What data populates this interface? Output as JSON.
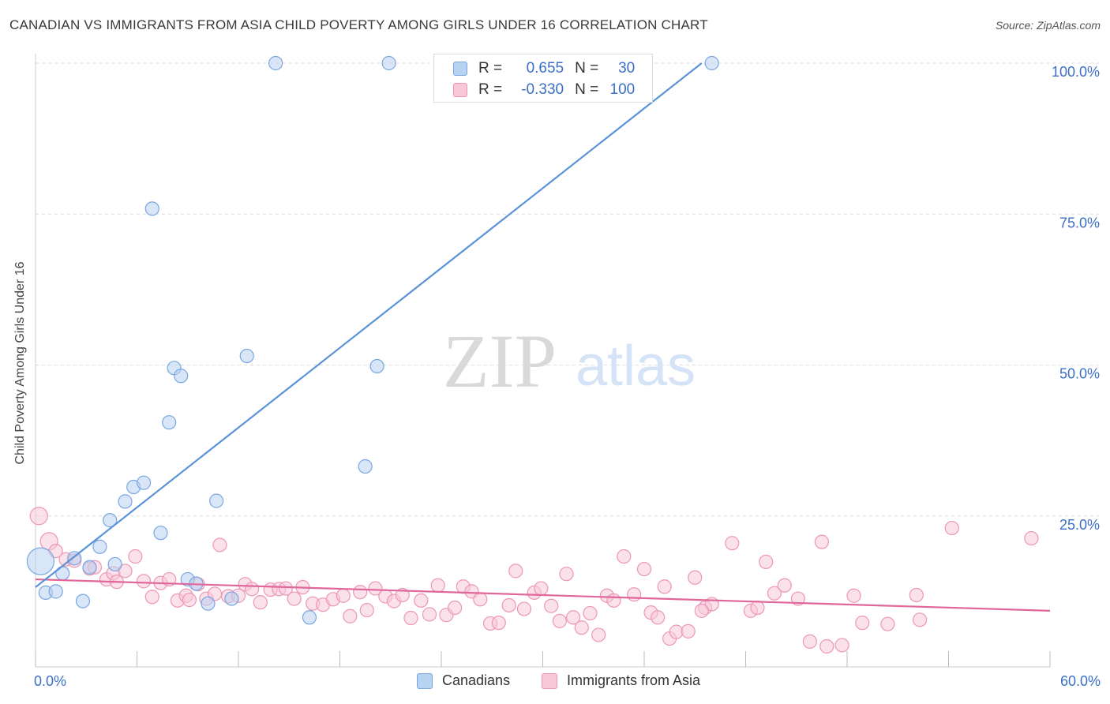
{
  "header": {
    "title": "CANADIAN VS IMMIGRANTS FROM ASIA CHILD POVERTY AMONG GIRLS UNDER 16 CORRELATION CHART",
    "source": "Source: ZipAtlas.com"
  },
  "watermark": {
    "zip": "ZIP",
    "atlas": "atlas"
  },
  "legend": {
    "rows": [
      {
        "r_label": "R =",
        "r_value": "0.655",
        "n_label": "N =",
        "n_value": "30",
        "color": "#b8d2f2",
        "stroke": "#7aa6e0"
      },
      {
        "r_label": "R =",
        "r_value": "-0.330",
        "n_label": "N =",
        "n_value": "100",
        "color": "#f8c8d8",
        "stroke": "#ec97b5"
      }
    ]
  },
  "bottom_legend": {
    "canadians": "Canadians",
    "asia": "Immigrants from Asia"
  },
  "chart_data": {
    "type": "scatter",
    "title": "CANADIAN VS IMMIGRANTS FROM ASIA CHILD POVERTY AMONG GIRLS UNDER 16 CORRELATION CHART",
    "xlabel": "",
    "ylabel": "Child Poverty Among Girls Under 16",
    "xlim": [
      0,
      60
    ],
    "ylim": [
      0,
      100
    ],
    "x_tick_labels": [
      "0.0%",
      "60.0%"
    ],
    "y_tick_values": [
      25,
      50,
      75,
      100
    ],
    "y_tick_labels": [
      "25.0%",
      "50.0%",
      "75.0%",
      "100.0%"
    ],
    "grid": true,
    "legend_position": "top-center",
    "series": [
      {
        "name": "Canadians",
        "color": "#5b93d8",
        "fill": "#b8d2f2",
        "trend": {
          "x": [
            0,
            39.4
          ],
          "y": [
            13.2,
            100
          ]
        },
        "points": [
          [
            0.3,
            17.5
          ],
          [
            0.6,
            12.3
          ],
          [
            1.2,
            12.5
          ],
          [
            1.6,
            15.5
          ],
          [
            2.3,
            18.0
          ],
          [
            2.8,
            10.9
          ],
          [
            3.2,
            16.5
          ],
          [
            3.8,
            19.9
          ],
          [
            4.4,
            24.3
          ],
          [
            4.7,
            17.0
          ],
          [
            5.3,
            27.4
          ],
          [
            5.8,
            29.8
          ],
          [
            6.4,
            30.5
          ],
          [
            6.9,
            75.9
          ],
          [
            7.4,
            22.2
          ],
          [
            7.9,
            40.5
          ],
          [
            8.2,
            49.5
          ],
          [
            8.6,
            48.2
          ],
          [
            9.0,
            14.5
          ],
          [
            9.5,
            13.8
          ],
          [
            10.2,
            10.5
          ],
          [
            10.7,
            27.5
          ],
          [
            11.6,
            11.3
          ],
          [
            12.5,
            51.5
          ],
          [
            14.2,
            100
          ],
          [
            16.2,
            8.2
          ],
          [
            19.5,
            33.2
          ],
          [
            20.2,
            49.8
          ],
          [
            20.9,
            100
          ],
          [
            40.0,
            100
          ]
        ]
      },
      {
        "name": "Immigrants from Asia",
        "color": "#e0679a",
        "fill": "#f8c8d8",
        "trend": {
          "x": [
            0,
            60
          ],
          "y": [
            14.5,
            9.3
          ]
        },
        "points": [
          [
            0.2,
            25.0
          ],
          [
            0.8,
            20.8
          ],
          [
            1.2,
            19.2
          ],
          [
            1.8,
            17.8
          ],
          [
            2.3,
            17.6
          ],
          [
            3.2,
            16.3
          ],
          [
            3.5,
            16.5
          ],
          [
            4.2,
            14.5
          ],
          [
            4.6,
            15.5
          ],
          [
            4.8,
            14.1
          ],
          [
            5.3,
            15.9
          ],
          [
            5.9,
            18.3
          ],
          [
            6.4,
            14.2
          ],
          [
            6.9,
            11.6
          ],
          [
            7.4,
            13.9
          ],
          [
            7.9,
            14.5
          ],
          [
            8.4,
            11.0
          ],
          [
            8.9,
            11.8
          ],
          [
            9.1,
            11.1
          ],
          [
            9.6,
            13.7
          ],
          [
            10.1,
            11.3
          ],
          [
            10.6,
            12.1
          ],
          [
            10.9,
            20.2
          ],
          [
            11.4,
            11.7
          ],
          [
            12.0,
            11.8
          ],
          [
            12.4,
            13.7
          ],
          [
            12.8,
            12.9
          ],
          [
            13.3,
            10.7
          ],
          [
            13.9,
            12.8
          ],
          [
            14.4,
            12.9
          ],
          [
            14.8,
            13.0
          ],
          [
            15.3,
            11.3
          ],
          [
            15.8,
            13.2
          ],
          [
            16.4,
            10.5
          ],
          [
            17.0,
            10.3
          ],
          [
            17.6,
            11.2
          ],
          [
            18.2,
            11.8
          ],
          [
            18.6,
            8.4
          ],
          [
            19.2,
            12.4
          ],
          [
            19.6,
            9.4
          ],
          [
            20.1,
            13.0
          ],
          [
            20.7,
            11.7
          ],
          [
            21.2,
            10.9
          ],
          [
            21.7,
            11.9
          ],
          [
            22.2,
            8.1
          ],
          [
            22.8,
            11.0
          ],
          [
            23.3,
            8.7
          ],
          [
            23.8,
            13.5
          ],
          [
            24.3,
            8.6
          ],
          [
            24.8,
            9.8
          ],
          [
            25.3,
            13.3
          ],
          [
            25.8,
            12.5
          ],
          [
            26.3,
            11.2
          ],
          [
            26.9,
            7.2
          ],
          [
            27.4,
            7.3
          ],
          [
            28.0,
            10.2
          ],
          [
            28.4,
            15.9
          ],
          [
            28.9,
            9.6
          ],
          [
            29.5,
            12.3
          ],
          [
            29.9,
            13.0
          ],
          [
            30.5,
            10.1
          ],
          [
            31.0,
            7.6
          ],
          [
            31.4,
            15.4
          ],
          [
            31.8,
            8.2
          ],
          [
            32.3,
            6.5
          ],
          [
            32.8,
            8.9
          ],
          [
            33.3,
            5.3
          ],
          [
            33.8,
            11.8
          ],
          [
            34.2,
            11.0
          ],
          [
            34.8,
            18.3
          ],
          [
            35.4,
            12.0
          ],
          [
            36.0,
            16.2
          ],
          [
            36.4,
            9.0
          ],
          [
            36.8,
            8.2
          ],
          [
            37.2,
            13.3
          ],
          [
            37.5,
            4.7
          ],
          [
            37.9,
            5.8
          ],
          [
            38.6,
            5.9
          ],
          [
            39.0,
            14.8
          ],
          [
            39.6,
            9.8
          ],
          [
            40.0,
            10.4
          ],
          [
            41.2,
            20.5
          ],
          [
            42.3,
            9.3
          ],
          [
            42.7,
            9.8
          ],
          [
            43.2,
            17.4
          ],
          [
            43.7,
            12.2
          ],
          [
            44.3,
            13.5
          ],
          [
            45.1,
            11.3
          ],
          [
            45.8,
            4.2
          ],
          [
            46.5,
            20.7
          ],
          [
            46.8,
            3.4
          ],
          [
            47.7,
            3.6
          ],
          [
            48.4,
            11.8
          ],
          [
            48.9,
            7.3
          ],
          [
            50.4,
            7.1
          ],
          [
            52.1,
            11.9
          ],
          [
            52.3,
            7.8
          ],
          [
            54.2,
            23.0
          ],
          [
            58.9,
            21.3
          ],
          [
            39.4,
            9.3
          ]
        ]
      }
    ]
  }
}
